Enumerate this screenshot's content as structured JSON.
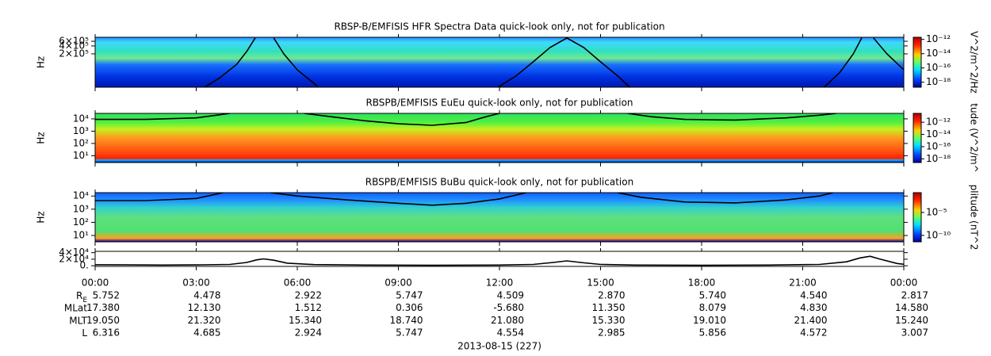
{
  "chart_data": [
    {
      "type": "spectrogram",
      "title": "RBSP-B/EMFISIS  HFR Spectra Data quick-look only, not for publication",
      "ylabel": "Hz",
      "log_y": true,
      "ylim": [
        11000,
        850000
      ],
      "yticks": [
        {
          "value": 200000,
          "label": "2×10⁵"
        },
        {
          "value": 400000,
          "label": "4×10⁵"
        },
        {
          "value": 600000,
          "label": "6×10⁵"
        }
      ],
      "colorbar": {
        "label": "V^2/m^2/Hz",
        "clim": [
          2e-19,
          2e-12
        ],
        "ticks": [
          {
            "value": 1e-12,
            "label": "10⁻¹²"
          },
          {
            "value": 1e-14,
            "label": "10⁻¹⁴"
          },
          {
            "value": 1e-16,
            "label": "10⁻¹⁶"
          },
          {
            "value": 1e-18,
            "label": "10⁻¹⁸"
          }
        ]
      },
      "series": [
        {
          "color": "#000000",
          "x": [
            3.2,
            3.7,
            4.2,
            4.5,
            4.75,
            5.0,
            5.3,
            5.6,
            6.0,
            6.6,
            9.0,
            11.9,
            12.5,
            13.0,
            13.5,
            14.0,
            14.5,
            15.0,
            15.5,
            15.9,
            19.0,
            21.6,
            22.1,
            22.5,
            22.75,
            22.9,
            23.1,
            23.5,
            24.0
          ],
          "values": [
            10000,
            25000,
            80000,
            250000,
            800000,
            null,
            800000,
            200000,
            50000,
            12000,
            null,
            10000,
            30000,
            100000,
            350000,
            800000,
            350000,
            100000,
            30000,
            10000,
            null,
            10000,
            40000,
            200000,
            800000,
            null,
            800000,
            200000,
            50000
          ]
        }
      ]
    },
    {
      "type": "spectrogram",
      "title": "RBSPB/EMFISIS  EuEu quick-look only, not for publication",
      "ylabel": "Hz",
      "log_y": true,
      "ylim": [
        2.8,
        28000
      ],
      "yticks": [
        {
          "value": 10,
          "label": "10¹"
        },
        {
          "value": 100,
          "label": "10²"
        },
        {
          "value": 1000,
          "label": "10³"
        },
        {
          "value": 10000,
          "label": "10⁴"
        }
      ],
      "colorbar": {
        "label": "tude (V^2/m^",
        "clim": [
          2.5e-19,
          2.8e-11
        ],
        "ticks": [
          {
            "value": 1e-12,
            "label": "10⁻¹²"
          },
          {
            "value": 1e-14,
            "label": "10⁻¹⁴"
          },
          {
            "value": 1e-16,
            "label": "10⁻¹⁶"
          },
          {
            "value": 1e-18,
            "label": "10⁻¹⁸"
          }
        ]
      },
      "series": [
        {
          "color": "#000000",
          "x": [
            0,
            1.5,
            3,
            3.6,
            4.0,
            5.0,
            6.2,
            7,
            8,
            9,
            10,
            11,
            11.6,
            12,
            14,
            15.8,
            16.5,
            17.5,
            19,
            20.5,
            21.5,
            22,
            23
          ],
          "values": [
            9000,
            9000,
            12000,
            20000,
            28000,
            null,
            28000,
            15000,
            7000,
            4000,
            3000,
            5000,
            15000,
            28000,
            null,
            28000,
            15000,
            9000,
            8000,
            12000,
            20000,
            28000,
            null
          ]
        }
      ]
    },
    {
      "type": "spectrogram",
      "title": "RBSPB/EMFISIS  BuBu quick-look only, not for publication",
      "ylabel": "Hz",
      "log_y": true,
      "ylim": [
        3.3,
        18000
      ],
      "yticks": [
        {
          "value": 10,
          "label": "10¹"
        },
        {
          "value": 100,
          "label": "10²"
        },
        {
          "value": 1000,
          "label": "10³"
        },
        {
          "value": 10000,
          "label": "10⁴"
        }
      ],
      "colorbar": {
        "label": "plitude (nT^2",
        "clim": [
          4e-12,
          0.2
        ],
        "ticks": [
          {
            "value": 1e-05,
            "label": "10⁻⁵"
          },
          {
            "value": 1e-10,
            "label": "10⁻¹⁰"
          }
        ]
      },
      "series": [
        {
          "color": "#000000",
          "x": [
            0,
            1.5,
            3,
            3.8,
            4.5,
            5.2,
            6,
            7.5,
            9,
            10,
            11,
            12,
            12.8,
            14,
            15.5,
            16.2,
            17.5,
            19,
            20.5,
            21.5,
            21.9,
            23
          ],
          "values": [
            4500,
            4500,
            6500,
            18000,
            null,
            18000,
            10000,
            5000,
            2800,
            2000,
            2800,
            6000,
            18000,
            null,
            18000,
            8000,
            3500,
            3000,
            5000,
            10000,
            18000,
            null
          ]
        }
      ]
    },
    {
      "type": "line",
      "log_y": false,
      "ylim": [
        -2000,
        44000
      ],
      "yticks": [
        {
          "value": 0,
          "label": "0."
        },
        {
          "value": 20000,
          "label": "2×10⁴"
        },
        {
          "value": 40000,
          "label": "4×10⁴"
        }
      ],
      "series": [
        {
          "color": "#000000",
          "x": [
            0,
            1,
            2,
            3,
            4,
            4.5,
            4.8,
            5,
            5.3,
            5.7,
            6.5,
            8,
            10,
            12,
            13,
            13.6,
            14,
            14.4,
            15,
            16,
            18,
            20,
            21.5,
            22.3,
            22.7,
            23,
            23.3,
            23.8,
            24
          ],
          "values": [
            3000,
            2500,
            2000,
            2500,
            4000,
            10000,
            18000,
            21000,
            17000,
            8000,
            3500,
            2000,
            1500,
            2000,
            4000,
            10000,
            15000,
            10000,
            4000,
            2000,
            1500,
            2000,
            4000,
            12000,
            24000,
            29000,
            20000,
            7000,
            4500
          ]
        }
      ]
    }
  ],
  "time_axis": {
    "xlim": [
      0,
      24
    ],
    "xticks": [
      {
        "value": 0,
        "label": "00:00"
      },
      {
        "value": 3,
        "label": "03:00"
      },
      {
        "value": 6,
        "label": "06:00"
      },
      {
        "value": 9,
        "label": "09:00"
      },
      {
        "value": 12,
        "label": "12:00"
      },
      {
        "value": 15,
        "label": "15:00"
      },
      {
        "value": 18,
        "label": "18:00"
      },
      {
        "value": 21,
        "label": "21:00"
      },
      {
        "value": 24,
        "label": "00:00"
      }
    ]
  },
  "ephemeris": [
    {
      "label": "R",
      "sub": "E",
      "values": [
        "5.752",
        "4.478",
        "2.922",
        "5.747",
        "4.509",
        "2.870",
        "5.740",
        "4.540",
        "2.817"
      ]
    },
    {
      "label": "MLat",
      "values": [
        "17.380",
        "12.130",
        "1.512",
        "0.306",
        "-5.680",
        "11.350",
        "8.079",
        "4.830",
        "14.580"
      ]
    },
    {
      "label": "MLT",
      "values": [
        "19.050",
        "21.320",
        "15.340",
        "18.740",
        "21.080",
        "15.330",
        "19.010",
        "21.400",
        "15.240"
      ]
    },
    {
      "label": "L",
      "values": [
        "6.316",
        "4.685",
        "2.924",
        "5.747",
        "4.554",
        "2.985",
        "5.856",
        "4.572",
        "3.007"
      ]
    }
  ],
  "date": "2013-08-15 (227)"
}
